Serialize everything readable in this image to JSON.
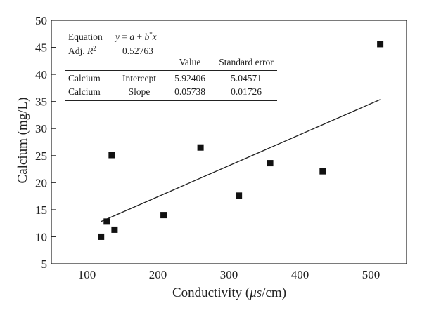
{
  "chart_data": {
    "type": "scatter",
    "xlabel_prefix": "Conductivity (",
    "xlabel_unit_italic": "μs",
    "xlabel_suffix": "/cm)",
    "ylabel": "Calcium (mg/L)",
    "xlim": [
      50,
      550
    ],
    "ylim": [
      5,
      50
    ],
    "x_ticks": [
      100,
      200,
      300,
      400,
      500
    ],
    "y_ticks": [
      5,
      10,
      15,
      20,
      25,
      30,
      35,
      40,
      45,
      50
    ],
    "grid": false,
    "marker": "square",
    "points": [
      {
        "x": 120,
        "y": 10.0
      },
      {
        "x": 128,
        "y": 12.8
      },
      {
        "x": 135,
        "y": 25.1
      },
      {
        "x": 139,
        "y": 11.3
      },
      {
        "x": 208,
        "y": 14.0
      },
      {
        "x": 260,
        "y": 26.5
      },
      {
        "x": 314,
        "y": 17.6
      },
      {
        "x": 358,
        "y": 23.6
      },
      {
        "x": 432,
        "y": 22.1
      },
      {
        "x": 513,
        "y": 45.6
      }
    ],
    "fit_line": {
      "x_start": 120,
      "x_end": 513,
      "intercept": 5.92406,
      "slope": 0.05738
    },
    "fit_table": {
      "equation_label": "Equation",
      "equation": {
        "y": "y",
        "eq": " = ",
        "a": "a",
        "plus": " + ",
        "b": "b",
        "star": "*",
        "x": "x"
      },
      "adj_r2_label": "Adj. ",
      "adj_r2_symbol": "R",
      "adj_r2_sup": "2",
      "adj_r2_value": "0.52763",
      "headers": {
        "value": "Value",
        "stderr": "Standard error"
      },
      "rows": [
        {
          "name": "Calcium",
          "param": "Intercept",
          "value": "5.92406",
          "stderr": "5.04571"
        },
        {
          "name": "Calcium",
          "param": "Slope",
          "value": "0.05738",
          "stderr": "0.01726"
        }
      ]
    }
  }
}
